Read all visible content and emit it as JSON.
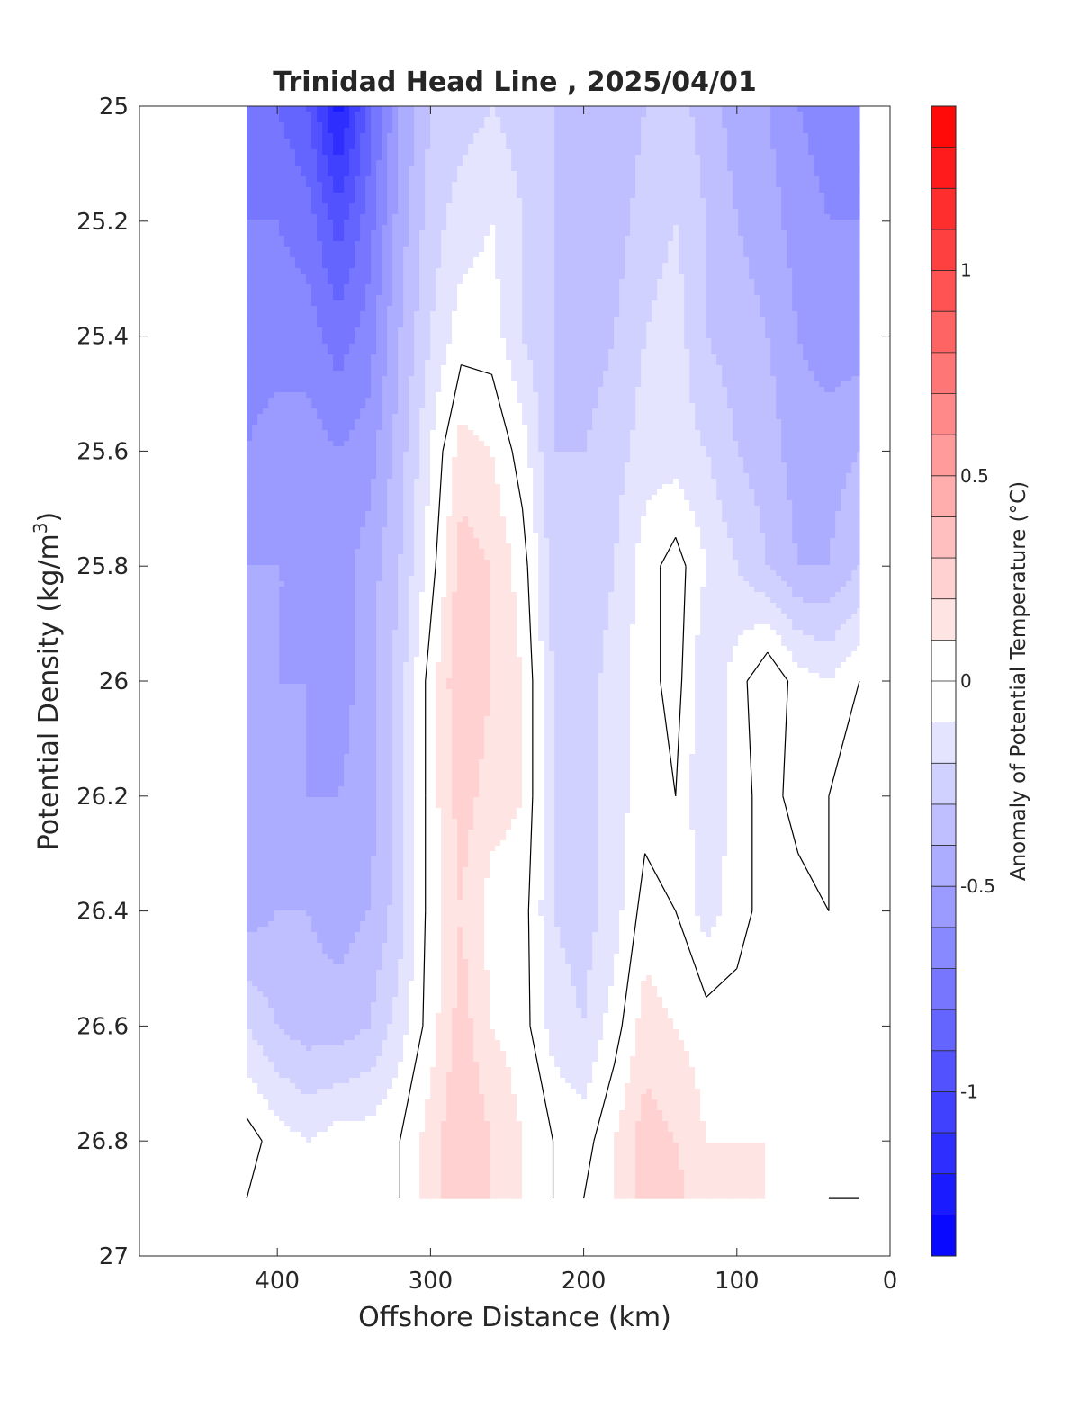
{
  "chart_data": {
    "type": "heatmap",
    "title": "Trinidad Head Line , 2025/04/01",
    "xlabel": "Offshore Distance (km)",
    "ylabel": "Potential Density (kg/m",
    "ylabel_sup": "3",
    "ylabel_close": ")",
    "xlim": [
      490,
      0
    ],
    "ylim": [
      25,
      27
    ],
    "x_reversed": true,
    "y_reversed": true,
    "x_ticks": [
      400,
      300,
      200,
      100,
      0
    ],
    "y_ticks": [
      25,
      25.2,
      25.4,
      25.6,
      25.8,
      26,
      26.2,
      26.4,
      26.6,
      26.8,
      27
    ],
    "colorbar": {
      "label": "Anomaly of Potential Temperature (°C)",
      "range": [
        -1.4,
        1.4
      ],
      "step": 0.1,
      "ticks": [
        -1,
        -0.5,
        0,
        0.5,
        1
      ],
      "colors": {
        "negative": "#0000ff",
        "zero": "#ffffff",
        "positive": "#ff0000"
      }
    },
    "contour_level": 0,
    "grid": {
      "x": [
        420,
        400,
        380,
        360,
        340,
        320,
        300,
        280,
        260,
        240,
        220,
        200,
        180,
        160,
        140,
        120,
        100,
        80,
        60,
        40,
        20
      ],
      "y": [
        25.0,
        25.2,
        25.4,
        25.6,
        25.8,
        26.0,
        26.2,
        26.4,
        26.6,
        26.8,
        26.9
      ],
      "values": [
        [
          -0.75,
          -0.8,
          -0.9,
          -1.25,
          -0.85,
          -0.5,
          -0.3,
          -0.25,
          -0.2,
          -0.25,
          -0.3,
          -0.35,
          -0.4,
          -0.3,
          -0.25,
          -0.35,
          -0.45,
          -0.5,
          -0.6,
          -0.65,
          -0.6
        ],
        [
          -0.7,
          -0.7,
          -0.75,
          -0.95,
          -0.75,
          -0.45,
          -0.25,
          -0.15,
          -0.1,
          -0.2,
          -0.3,
          -0.35,
          -0.35,
          -0.25,
          -0.2,
          -0.3,
          -0.4,
          -0.45,
          -0.55,
          -0.6,
          -0.6
        ],
        [
          -0.65,
          -0.65,
          -0.65,
          -0.75,
          -0.65,
          -0.4,
          -0.2,
          -0.05,
          -0.05,
          -0.2,
          -0.3,
          -0.35,
          -0.3,
          -0.2,
          -0.15,
          -0.3,
          -0.35,
          -0.4,
          -0.5,
          -0.55,
          -0.55
        ],
        [
          -0.6,
          -0.55,
          -0.55,
          -0.6,
          -0.55,
          -0.35,
          -0.1,
          0.15,
          0.1,
          -0.05,
          -0.3,
          -0.3,
          -0.25,
          -0.15,
          -0.15,
          -0.2,
          -0.3,
          -0.35,
          -0.45,
          -0.45,
          -0.4
        ],
        [
          -0.5,
          -0.5,
          -0.5,
          -0.55,
          -0.45,
          -0.3,
          -0.05,
          0.25,
          0.2,
          0.05,
          -0.25,
          -0.3,
          -0.2,
          -0.05,
          0.05,
          -0.1,
          -0.2,
          -0.3,
          -0.4,
          -0.4,
          -0.3
        ],
        [
          -0.45,
          -0.5,
          -0.5,
          -0.55,
          -0.45,
          -0.25,
          0.05,
          0.3,
          0.2,
          0.1,
          -0.2,
          -0.25,
          -0.15,
          -0.05,
          0.05,
          -0.2,
          -0.05,
          0.1,
          -0.05,
          -0.1,
          0.0
        ],
        [
          -0.45,
          -0.45,
          -0.5,
          -0.5,
          -0.45,
          -0.25,
          0.05,
          0.25,
          0.15,
          0.1,
          -0.2,
          -0.25,
          -0.15,
          -0.05,
          0.0,
          -0.2,
          -0.05,
          0.05,
          -0.05,
          0.0,
          0.05
        ],
        [
          -0.45,
          -0.4,
          -0.4,
          -0.45,
          -0.4,
          -0.25,
          0.05,
          0.2,
          0.05,
          0.05,
          -0.2,
          -0.25,
          -0.15,
          0.05,
          0.0,
          -0.15,
          -0.05,
          0.05,
          0.05,
          0.0,
          0.1
        ],
        [
          -0.2,
          -0.3,
          -0.35,
          -0.35,
          -0.3,
          -0.15,
          0.05,
          0.25,
          0.1,
          0.05,
          -0.15,
          -0.2,
          -0.05,
          0.15,
          0.1,
          0.05,
          0.05,
          0.05,
          0.05,
          0.05,
          0.1
        ],
        [
          0.05,
          -0.05,
          -0.1,
          -0.05,
          -0.05,
          0.0,
          0.15,
          0.3,
          0.2,
          0.1,
          0.0,
          -0.05,
          0.1,
          0.25,
          0.2,
          0.1,
          0.1,
          0.1,
          0.05,
          0.05,
          0.05
        ],
        [
          0.0,
          0.0,
          0.0,
          0.0,
          0.0,
          0.0,
          0.15,
          0.3,
          0.2,
          0.1,
          0.0,
          0.0,
          0.1,
          0.25,
          0.25,
          0.1,
          0.15,
          0.1,
          0.05,
          0.0,
          0.0
        ]
      ]
    }
  }
}
